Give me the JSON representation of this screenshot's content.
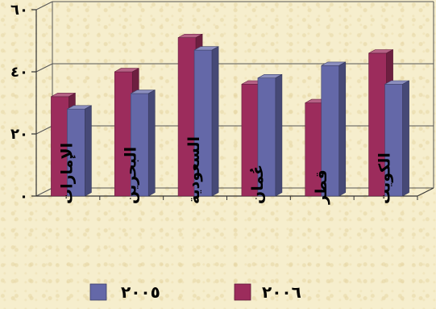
{
  "chart_data": {
    "type": "bar",
    "categories": [
      "الإمارات",
      "البحرين",
      "السعودية",
      "عُمان",
      "قطر",
      "الكويت"
    ],
    "series": [
      {
        "name": "٢٠٠٦",
        "color": "#9c2c5c",
        "values": [
          32,
          40,
          51,
          36,
          30,
          46
        ]
      },
      {
        "name": "٢٠٠٥",
        "color": "#6468a8",
        "values": [
          28,
          33,
          47,
          38,
          42,
          36
        ]
      }
    ],
    "y_ticks": [
      {
        "value": 0,
        "label": "٠"
      },
      {
        "value": 20,
        "label": "٢٠"
      },
      {
        "value": 40,
        "label": "٤٠"
      },
      {
        "value": 60,
        "label": "٦٠"
      }
    ],
    "ylim": [
      0,
      60
    ],
    "title": "",
    "xlabel": "",
    "ylabel": "",
    "grid": true,
    "legend_position": "bottom"
  }
}
